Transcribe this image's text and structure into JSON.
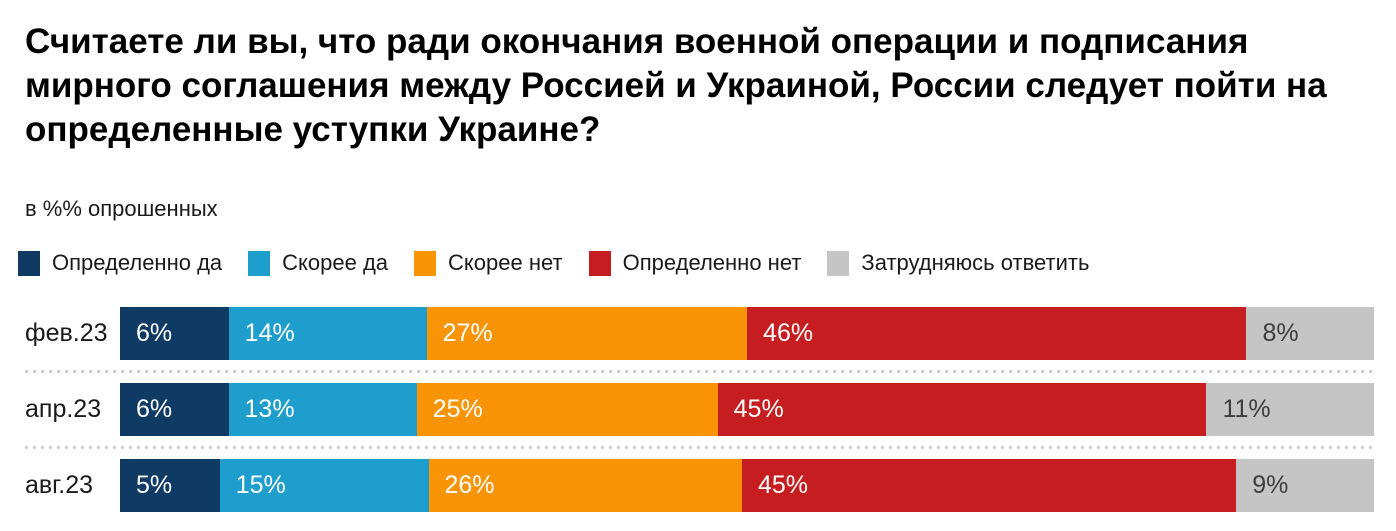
{
  "title": "Считаете ли вы, что ради окончания военной операции и подписания мирного соглашения между Россией и Украиной, России следует пойти на определенные уступки Украине?",
  "subtitle": "в %% опрошенных",
  "colors": {
    "background": "#ffffff",
    "title_text": "#000000",
    "row_label_text": "#1a1a1a",
    "separator_dots": "#cfcfcf"
  },
  "chart_data": {
    "type": "bar",
    "variant": "horizontal-stacked",
    "unit": "%",
    "legend_position": "top",
    "axes": "none",
    "categories": [
      "фев.23",
      "апр.23",
      "авг.23"
    ],
    "series": [
      {
        "name": "Определенно да",
        "color": "#0e3a63",
        "label_color": "#ffffff",
        "values": [
          6,
          6,
          5
        ]
      },
      {
        "name": "Скорее да",
        "color": "#1e9ecd",
        "label_color": "#ffffff",
        "values": [
          14,
          13,
          15
        ]
      },
      {
        "name": "Скорее нет",
        "color": "#f89406",
        "label_color": "#ffffff",
        "values": [
          27,
          25,
          26
        ]
      },
      {
        "name": "Определенно нет",
        "color": "#c51d20",
        "label_color": "#ffffff",
        "values": [
          46,
          45,
          45
        ]
      },
      {
        "name": "Затрудняюсь ответить",
        "color": "#c5c5c5",
        "label_color": "#3d3d3d",
        "values": [
          8,
          11,
          9
        ]
      }
    ]
  }
}
